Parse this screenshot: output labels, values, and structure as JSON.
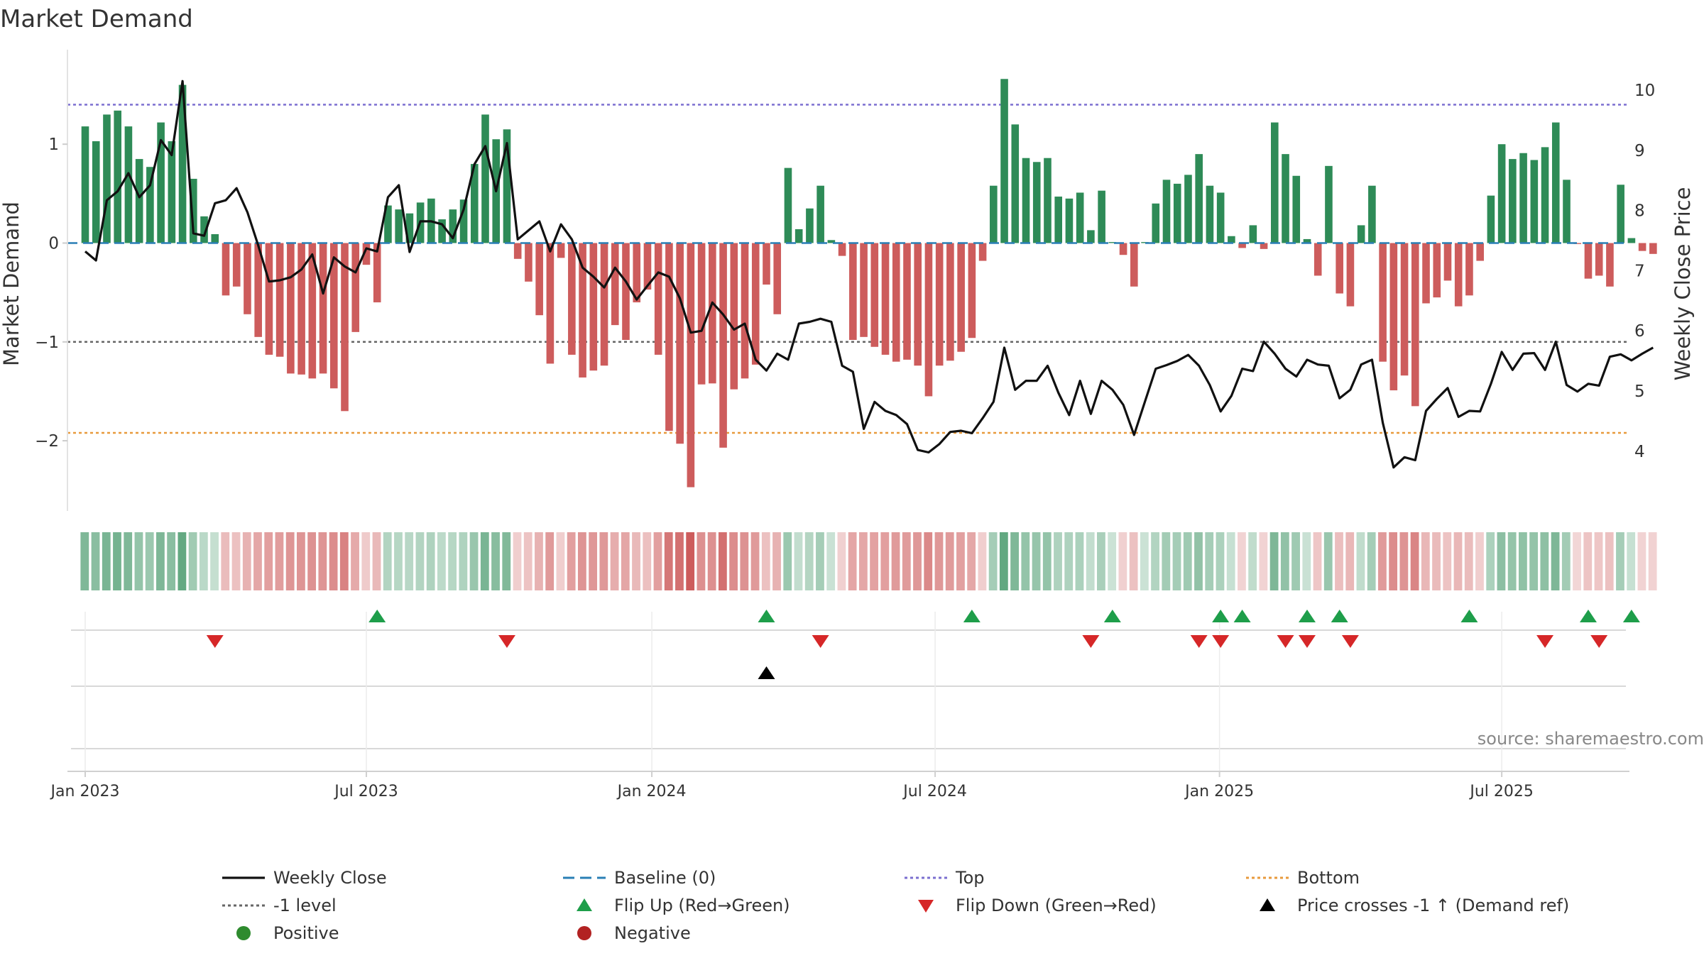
{
  "chart_data": {
    "type": "bar",
    "title": "Market Demand",
    "ylabel": "Market Demand",
    "ylabel_right": "Weekly Close Price",
    "ylim": [
      -2.7,
      1.9
    ],
    "ylim_right": [
      3.0,
      10.5
    ],
    "yticks": [
      {
        "value": 1,
        "label": "1"
      },
      {
        "value": 0,
        "label": "0"
      },
      {
        "value": -1,
        "label": "−1"
      },
      {
        "value": -2,
        "label": "−2"
      }
    ],
    "yticks_right": [
      {
        "value": 10,
        "label": "10"
      },
      {
        "value": 9,
        "label": "9"
      },
      {
        "value": 8,
        "label": "8"
      },
      {
        "value": 7,
        "label": "7"
      },
      {
        "value": 6,
        "label": "6"
      },
      {
        "value": 5,
        "label": "5"
      },
      {
        "value": 4,
        "label": "4"
      }
    ],
    "x_start_week": -0.6,
    "x_end_week": 144,
    "xticks": [
      {
        "week": 0,
        "label": "Jan 2023"
      },
      {
        "week": 26,
        "label": "Jul 2023"
      },
      {
        "week": 52.4,
        "label": "Jan 2024"
      },
      {
        "week": 78.6,
        "label": "Jul 2024"
      },
      {
        "week": 104.9,
        "label": "Jan 2025"
      },
      {
        "week": 131,
        "label": "Jul 2025"
      }
    ],
    "reference_lines": [
      {
        "name": "Top",
        "value": 1.4,
        "color": "#7b6fd0"
      },
      {
        "name": "-1 level",
        "value": -1.0,
        "color": "#666666"
      },
      {
        "name": "Bottom",
        "value": -1.92,
        "color": "#e89a3c"
      },
      {
        "name": "Baseline (0)",
        "value": 0,
        "color": "#2a7fb5"
      }
    ],
    "demand_series": {
      "name": "Market Demand",
      "values": [
        1.18,
        1.03,
        1.3,
        1.34,
        1.18,
        0.85,
        0.77,
        1.22,
        1.03,
        1.6,
        0.65,
        0.27,
        0.09,
        -0.53,
        -0.44,
        -0.72,
        -0.95,
        -1.13,
        -1.15,
        -1.32,
        -1.33,
        -1.37,
        -1.32,
        -1.47,
        -1.7,
        -0.9,
        -0.22,
        -0.6,
        0.38,
        0.34,
        0.3,
        0.41,
        0.45,
        0.24,
        0.34,
        0.44,
        0.8,
        1.3,
        1.05,
        1.15,
        -0.16,
        -0.39,
        -0.73,
        -1.22,
        -0.15,
        -1.13,
        -1.36,
        -1.29,
        -1.24,
        -0.83,
        -0.98,
        -0.6,
        -0.47,
        -1.13,
        -1.9,
        -2.03,
        -2.47,
        -1.43,
        -1.42,
        -2.07,
        -1.48,
        -1.37,
        -1.23,
        -0.42,
        -0.72,
        0.76,
        0.14,
        0.35,
        0.58,
        0.03,
        -0.13,
        -0.98,
        -0.95,
        -1.05,
        -1.13,
        -1.2,
        -1.18,
        -1.24,
        -1.55,
        -1.24,
        -1.19,
        -1.1,
        -0.96,
        -0.18,
        0.58,
        1.66,
        1.2,
        0.86,
        0.82,
        0.86,
        0.47,
        0.45,
        0.51,
        0.13,
        0.53,
        0.01,
        -0.12,
        -0.44,
        0.01,
        0.4,
        0.64,
        0.6,
        0.69,
        0.9,
        0.58,
        0.51,
        0.07,
        -0.05,
        0.18,
        -0.06,
        1.22,
        0.9,
        0.68,
        0.04,
        -0.33,
        0.78,
        -0.51,
        -0.64,
        0.18,
        0.58,
        -1.2,
        -1.49,
        -1.34,
        -1.65,
        -0.61,
        -0.55,
        -0.38,
        -0.64,
        -0.53,
        -0.18,
        0.48,
        1.0,
        0.85,
        0.91,
        0.84,
        0.97,
        1.22,
        0.64,
        -0.01,
        -0.36,
        -0.33,
        -0.44,
        0.59,
        0.05,
        -0.08,
        -0.11
      ],
      "positive_color": "#2e8b57",
      "negative_color": "#cd5c5c"
    },
    "price_series": {
      "name": "Weekly Close",
      "color": "#111111",
      "values": [
        7.32,
        7.17,
        8.17,
        8.32,
        8.62,
        8.22,
        8.42,
        9.17,
        8.92,
        10.15,
        7.62,
        7.58,
        8.12,
        8.17,
        8.37,
        7.97,
        7.42,
        6.82,
        6.84,
        6.89,
        7.02,
        7.27,
        6.62,
        7.22,
        7.07,
        6.97,
        7.37,
        7.32,
        8.22,
        8.42,
        7.31,
        7.82,
        7.82,
        7.77,
        7.54,
        8.02,
        8.77,
        9.07,
        8.32,
        9.12,
        7.52,
        7.67,
        7.82,
        7.32,
        7.77,
        7.52,
        7.05,
        6.9,
        6.72,
        7.05,
        6.82,
        6.52,
        6.75,
        6.97,
        6.9,
        6.54,
        5.97,
        6.0,
        6.47,
        6.27,
        6.02,
        6.12,
        5.52,
        5.34,
        5.62,
        5.52,
        6.12,
        6.15,
        6.2,
        6.15,
        5.42,
        5.32,
        4.37,
        4.82,
        4.67,
        4.6,
        4.45,
        4.02,
        3.98,
        4.12,
        4.32,
        4.34,
        4.3,
        4.55,
        4.82,
        5.72,
        5.02,
        5.17,
        5.17,
        5.42,
        4.97,
        4.6,
        5.17,
        4.62,
        5.17,
        5.02,
        4.77,
        4.27,
        4.82,
        5.37,
        5.43,
        5.5,
        5.6,
        5.42,
        5.1,
        4.66,
        4.92,
        5.37,
        5.33,
        5.82,
        5.62,
        5.37,
        5.24,
        5.52,
        5.44,
        5.42,
        4.88,
        5.02,
        5.44,
        5.52,
        4.47,
        3.73,
        3.9,
        3.85,
        4.67,
        4.87,
        5.05,
        4.57,
        4.67,
        4.66,
        5.12,
        5.65,
        5.35,
        5.62,
        5.63,
        5.35,
        5.82,
        5.1,
        4.99,
        5.12,
        5.09,
        5.57,
        5.61,
        5.51,
        5.62,
        5.72
      ]
    },
    "heat_strip": {
      "name": "Demand heat strip",
      "positive_color": "#2e8b57",
      "negative_color": "#cd5c5c"
    },
    "flip_up_weeks": [
      27,
      63,
      82,
      95,
      105,
      107,
      113,
      116,
      128,
      139,
      143
    ],
    "flip_down_weeks": [
      12,
      39,
      68,
      93,
      103,
      105,
      111,
      113,
      117,
      135,
      140
    ],
    "price_cross_weeks": [
      63
    ],
    "legend": {
      "placement": "bottom",
      "items": [
        {
          "label": "Weekly Close",
          "marker": "line",
          "color": "#111111"
        },
        {
          "label": "Baseline (0)",
          "marker": "dashed",
          "color": "#2a7fb5"
        },
        {
          "label": "Top",
          "marker": "dotted",
          "color": "#7b6fd0"
        },
        {
          "label": "Bottom",
          "marker": "dotted",
          "color": "#e89a3c"
        },
        {
          "label": "-1 level",
          "marker": "dotted",
          "color": "#666666"
        },
        {
          "label": "Flip Up (Red→Green)",
          "marker": "triangle-up",
          "color": "#1e9e4a"
        },
        {
          "label": "Flip Down (Green→Red)",
          "marker": "triangle-down",
          "color": "#d62728"
        },
        {
          "label": "Price crosses -1 ↑ (Demand ref)",
          "marker": "triangle-up",
          "color": "#000000"
        },
        {
          "label": "Positive",
          "marker": "circle",
          "color": "#2e8b2e"
        },
        {
          "label": "Negative",
          "marker": "circle",
          "color": "#b22222"
        }
      ]
    },
    "source": "source: sharemaestro.com"
  }
}
